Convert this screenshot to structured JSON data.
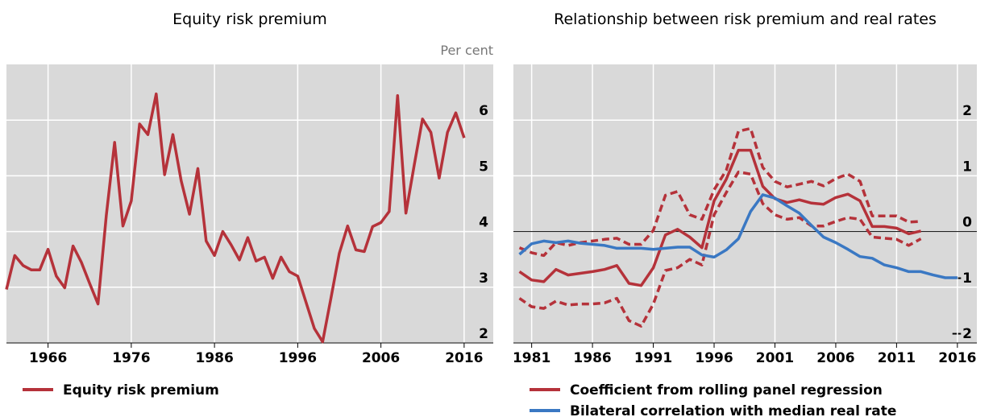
{
  "chart_data": [
    {
      "type": "line",
      "title": "Equity risk premium",
      "y_unit": "Per cent",
      "x": [
        1961,
        1962,
        1963,
        1964,
        1965,
        1966,
        1967,
        1968,
        1969,
        1970,
        1971,
        1972,
        1973,
        1974,
        1975,
        1976,
        1977,
        1978,
        1979,
        1980,
        1981,
        1982,
        1983,
        1984,
        1985,
        1986,
        1987,
        1988,
        1989,
        1990,
        1991,
        1992,
        1993,
        1994,
        1995,
        1996,
        1997,
        1998,
        1999,
        2000,
        2001,
        2002,
        2003,
        2004,
        2005,
        2006,
        2007,
        2008,
        2009,
        2010,
        2011,
        2012,
        2013,
        2014,
        2015,
        2016
      ],
      "series": [
        {
          "name": "Equity risk premium",
          "color": "#b5323a",
          "values": [
            2.96,
            3.57,
            3.39,
            3.31,
            3.31,
            3.68,
            3.2,
            2.99,
            3.74,
            3.45,
            3.07,
            2.7,
            4.29,
            5.6,
            4.1,
            4.55,
            5.93,
            5.74,
            6.47,
            5.02,
            5.74,
            4.91,
            4.31,
            5.13,
            3.83,
            3.57,
            4.0,
            3.76,
            3.49,
            3.89,
            3.47,
            3.54,
            3.16,
            3.54,
            3.28,
            3.2,
            2.73,
            2.26,
            2.02,
            2.81,
            3.61,
            4.1,
            3.67,
            3.64,
            4.09,
            4.16,
            4.36,
            6.44,
            4.33,
            5.19,
            6.02,
            5.78,
            4.96,
            5.78,
            6.13,
            5.68
          ]
        }
      ],
      "xlim": [
        1961,
        2019.5
      ],
      "xticks": [
        1966,
        1976,
        1986,
        1996,
        2006,
        2016
      ],
      "ylim": [
        2,
        7
      ],
      "yticks": [
        2,
        3,
        4,
        5,
        6
      ],
      "grid": true,
      "zero_line": false,
      "y_axis_side": "right"
    },
    {
      "type": "line",
      "title": "Relationship between risk premium and real rates",
      "x": [
        1980,
        1981,
        1982,
        1983,
        1984,
        1985,
        1986,
        1987,
        1988,
        1989,
        1990,
        1991,
        1992,
        1993,
        1994,
        1995,
        1996,
        1997,
        1998,
        1999,
        2000,
        2001,
        2002,
        2003,
        2004,
        2005,
        2006,
        2007,
        2008,
        2009,
        2010,
        2011,
        2012,
        2013,
        2014,
        2015,
        2016
      ],
      "series": [
        {
          "color": "#b5323a",
          "dashed": true,
          "values": [
            -0.29,
            -0.38,
            -0.43,
            -0.2,
            -0.25,
            -0.2,
            -0.17,
            -0.14,
            -0.12,
            -0.23,
            -0.23,
            0.02,
            0.65,
            0.72,
            0.3,
            0.22,
            0.75,
            1.1,
            1.8,
            1.85,
            1.15,
            0.9,
            0.8,
            0.85,
            0.9,
            0.82,
            0.95,
            1.03,
            0.9,
            0.28,
            0.28,
            0.28,
            0.17,
            0.18,
            null,
            null,
            null
          ]
        },
        {
          "color": "#b5323a",
          "dashed": true,
          "values": [
            -1.2,
            -1.35,
            -1.38,
            -1.25,
            -1.32,
            -1.3,
            -1.3,
            -1.28,
            -1.2,
            -1.6,
            -1.7,
            -1.3,
            -0.7,
            -0.65,
            -0.5,
            -0.6,
            0.3,
            0.7,
            1.07,
            1.03,
            0.5,
            0.3,
            0.22,
            0.25,
            0.1,
            0.1,
            0.18,
            0.25,
            0.22,
            -0.1,
            -0.12,
            -0.14,
            -0.25,
            -0.13,
            null,
            null,
            null
          ]
        },
        {
          "name": "Coefficient from rolling panel regression",
          "color": "#b5323a",
          "values": [
            -0.72,
            -0.87,
            -0.9,
            -0.68,
            -0.78,
            -0.75,
            -0.72,
            -0.68,
            -0.61,
            -0.93,
            -0.97,
            -0.65,
            -0.06,
            0.04,
            -0.1,
            -0.29,
            0.55,
            0.94,
            1.46,
            1.46,
            0.81,
            0.59,
            0.52,
            0.57,
            0.51,
            0.49,
            0.61,
            0.67,
            0.55,
            0.09,
            0.09,
            0.06,
            -0.04,
            0.01,
            null,
            null,
            null
          ]
        },
        {
          "name": "Bilateral correlation with median real rate",
          "color": "#3a78c3",
          "values": [
            -0.41,
            -0.22,
            -0.17,
            -0.2,
            -0.17,
            -0.21,
            -0.23,
            -0.25,
            -0.3,
            -0.3,
            -0.3,
            -0.32,
            -0.3,
            -0.28,
            -0.28,
            -0.42,
            -0.46,
            -0.33,
            -0.13,
            0.36,
            0.66,
            0.6,
            0.46,
            0.33,
            0.11,
            -0.1,
            -0.2,
            -0.32,
            -0.45,
            -0.48,
            -0.6,
            -0.65,
            -0.72,
            -0.72,
            -0.78,
            -0.83,
            -0.83
          ]
        }
      ],
      "xlim": [
        1979.5,
        2017.6
      ],
      "xticks": [
        1981,
        1986,
        1991,
        1996,
        2001,
        2006,
        2011,
        2016
      ],
      "ylim": [
        -2,
        3
      ],
      "yticks": [
        {
          "value": -2,
          "label": "−2"
        },
        {
          "value": -1,
          "label": "−1"
        },
        0,
        1,
        2
      ],
      "grid": true,
      "zero_line": true,
      "y_axis_side": "right"
    }
  ]
}
